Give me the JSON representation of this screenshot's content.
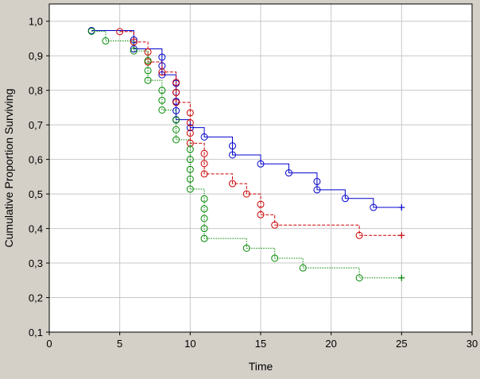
{
  "chart_data": {
    "type": "line",
    "subtype": "kaplan-meier-step",
    "title": "",
    "xlabel": "Time",
    "ylabel": "Cumulative Proportion Surviving",
    "xlim": [
      0,
      30
    ],
    "ylim": [
      0.1,
      1.05
    ],
    "x_ticks": [
      0,
      5,
      10,
      15,
      20,
      25,
      30
    ],
    "x_tick_labels": [
      "0",
      "5",
      "10",
      "15",
      "20",
      "25",
      "30"
    ],
    "y_ticks": [
      0.1,
      0.2,
      0.3,
      0.4,
      0.5,
      0.6,
      0.7,
      0.8,
      0.9,
      1.0
    ],
    "y_tick_labels": [
      "0,1",
      "0,2",
      "0,3",
      "0,4",
      "0,5",
      "0,6",
      "0,7",
      "0,8",
      "0,9",
      "1,0"
    ],
    "grid": true,
    "background_color": "#ffffff",
    "frame_color": "#d4d0c8",
    "series": [
      {
        "color": "#0000cc",
        "dash": "solid",
        "x": [
          3,
          6,
          8,
          9,
          10,
          11,
          13,
          15,
          17,
          19,
          21,
          23
        ],
        "y": [
          0.973,
          0.92,
          0.845,
          0.715,
          0.692,
          0.665,
          0.613,
          0.587,
          0.561,
          0.512,
          0.487,
          0.461
        ],
        "event_markers": [
          [
            3,
            0.973
          ],
          [
            6,
            0.946
          ],
          [
            6,
            0.92
          ],
          [
            8,
            0.896
          ],
          [
            8,
            0.871
          ],
          [
            8,
            0.845
          ],
          [
            9,
            0.82
          ],
          [
            9,
            0.794
          ],
          [
            9,
            0.768
          ],
          [
            9,
            0.741
          ],
          [
            9,
            0.715
          ],
          [
            10,
            0.692
          ],
          [
            11,
            0.665
          ],
          [
            13,
            0.639
          ],
          [
            13,
            0.613
          ],
          [
            15,
            0.587
          ],
          [
            17,
            0.561
          ],
          [
            19,
            0.536
          ],
          [
            19,
            0.512
          ],
          [
            21,
            0.487
          ],
          [
            23,
            0.461
          ]
        ],
        "censored": [
          [
            25,
            0.461
          ]
        ]
      },
      {
        "color": "#cc0000",
        "dash": "dashed",
        "x": [
          5,
          6,
          7,
          8,
          9,
          10,
          11,
          13,
          14,
          15,
          16,
          22
        ],
        "y": [
          0.97,
          0.94,
          0.882,
          0.853,
          0.765,
          0.647,
          0.558,
          0.53,
          0.5,
          0.44,
          0.41,
          0.38
        ],
        "event_markers": [
          [
            5,
            0.97
          ],
          [
            6,
            0.94
          ],
          [
            7,
            0.911
          ],
          [
            7,
            0.882
          ],
          [
            8,
            0.853
          ],
          [
            9,
            0.823
          ],
          [
            9,
            0.794
          ],
          [
            9,
            0.765
          ],
          [
            10,
            0.735
          ],
          [
            10,
            0.706
          ],
          [
            10,
            0.676
          ],
          [
            10,
            0.647
          ],
          [
            11,
            0.617
          ],
          [
            11,
            0.588
          ],
          [
            11,
            0.558
          ],
          [
            13,
            0.53
          ],
          [
            14,
            0.5
          ],
          [
            15,
            0.47
          ],
          [
            15,
            0.44
          ],
          [
            16,
            0.41
          ],
          [
            22,
            0.38
          ]
        ],
        "censored": [
          [
            25,
            0.38
          ]
        ]
      },
      {
        "color": "#008800",
        "dash": "dotted",
        "x": [
          3,
          4,
          6,
          7,
          8,
          9,
          10,
          11,
          14,
          16,
          18,
          22
        ],
        "y": [
          0.971,
          0.943,
          0.914,
          0.829,
          0.743,
          0.657,
          0.514,
          0.371,
          0.343,
          0.314,
          0.286,
          0.257
        ],
        "event_markers": [
          [
            3,
            0.971
          ],
          [
            4,
            0.943
          ],
          [
            6,
            0.914
          ],
          [
            7,
            0.886
          ],
          [
            7,
            0.857
          ],
          [
            7,
            0.829
          ],
          [
            8,
            0.8
          ],
          [
            8,
            0.771
          ],
          [
            8,
            0.743
          ],
          [
            9,
            0.714
          ],
          [
            9,
            0.686
          ],
          [
            9,
            0.657
          ],
          [
            10,
            0.629
          ],
          [
            10,
            0.6
          ],
          [
            10,
            0.571
          ],
          [
            10,
            0.543
          ],
          [
            10,
            0.514
          ],
          [
            11,
            0.486
          ],
          [
            11,
            0.457
          ],
          [
            11,
            0.429
          ],
          [
            11,
            0.4
          ],
          [
            11,
            0.371
          ],
          [
            14,
            0.343
          ],
          [
            16,
            0.314
          ],
          [
            18,
            0.286
          ],
          [
            22,
            0.257
          ]
        ],
        "censored": [
          [
            25,
            0.257
          ]
        ]
      }
    ]
  }
}
